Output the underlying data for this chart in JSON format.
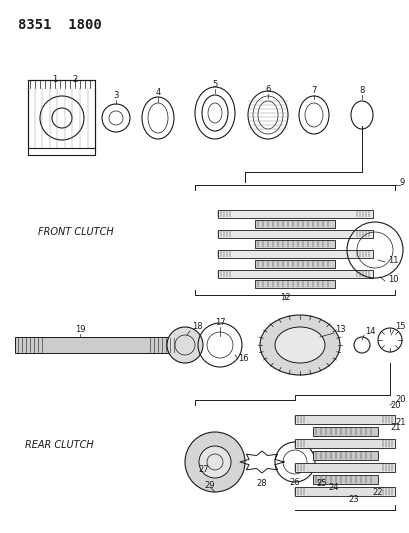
{
  "title": "8351  1800",
  "background_color": "#ffffff",
  "text_color": "#1a1a1a",
  "front_clutch_label": "FRONT CLUTCH",
  "rear_clutch_label": "REAR CLUTCH",
  "fig_width": 4.1,
  "fig_height": 5.33,
  "dpi": 100
}
